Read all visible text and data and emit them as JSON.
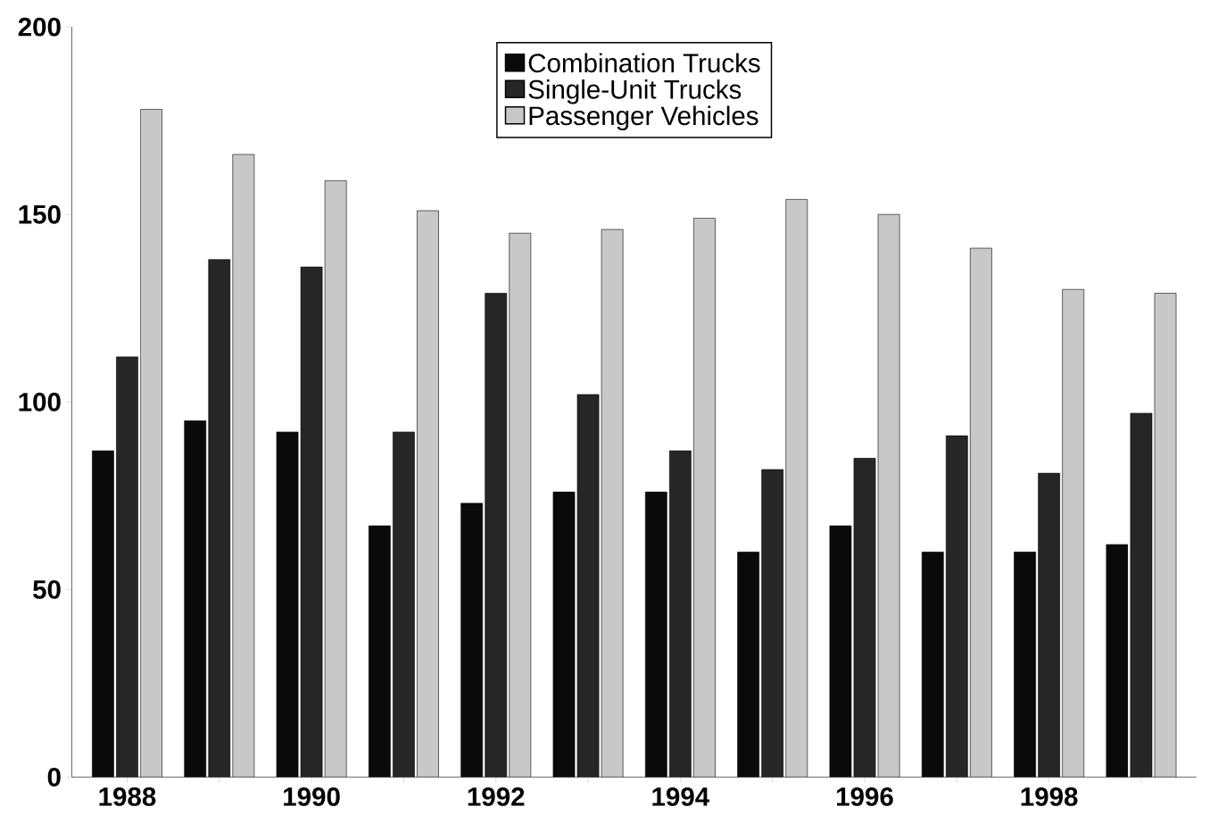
{
  "chart_data": {
    "type": "bar",
    "categories": [
      "1988",
      null,
      "1990",
      null,
      "1992",
      null,
      "1994",
      null,
      "1996",
      null,
      "1998",
      null
    ],
    "series": [
      {
        "name": "Combination Trucks",
        "color": "#0a0a0a",
        "values": [
          87,
          95,
          92,
          67,
          73,
          76,
          76,
          60,
          67,
          60,
          60,
          62
        ]
      },
      {
        "name": "Single-Unit Trucks",
        "color": "#262626",
        "values": [
          112,
          138,
          136,
          92,
          129,
          102,
          87,
          82,
          85,
          91,
          81,
          97
        ]
      },
      {
        "name": "Passenger Vehicles",
        "color": "#c8c8c8",
        "values": [
          178,
          166,
          159,
          151,
          145,
          146,
          149,
          154,
          150,
          141,
          130,
          129
        ]
      }
    ],
    "ylim": [
      0,
      200
    ],
    "yticks": [
      0,
      50,
      100,
      150,
      200
    ],
    "legend": "top",
    "grid": false
  }
}
